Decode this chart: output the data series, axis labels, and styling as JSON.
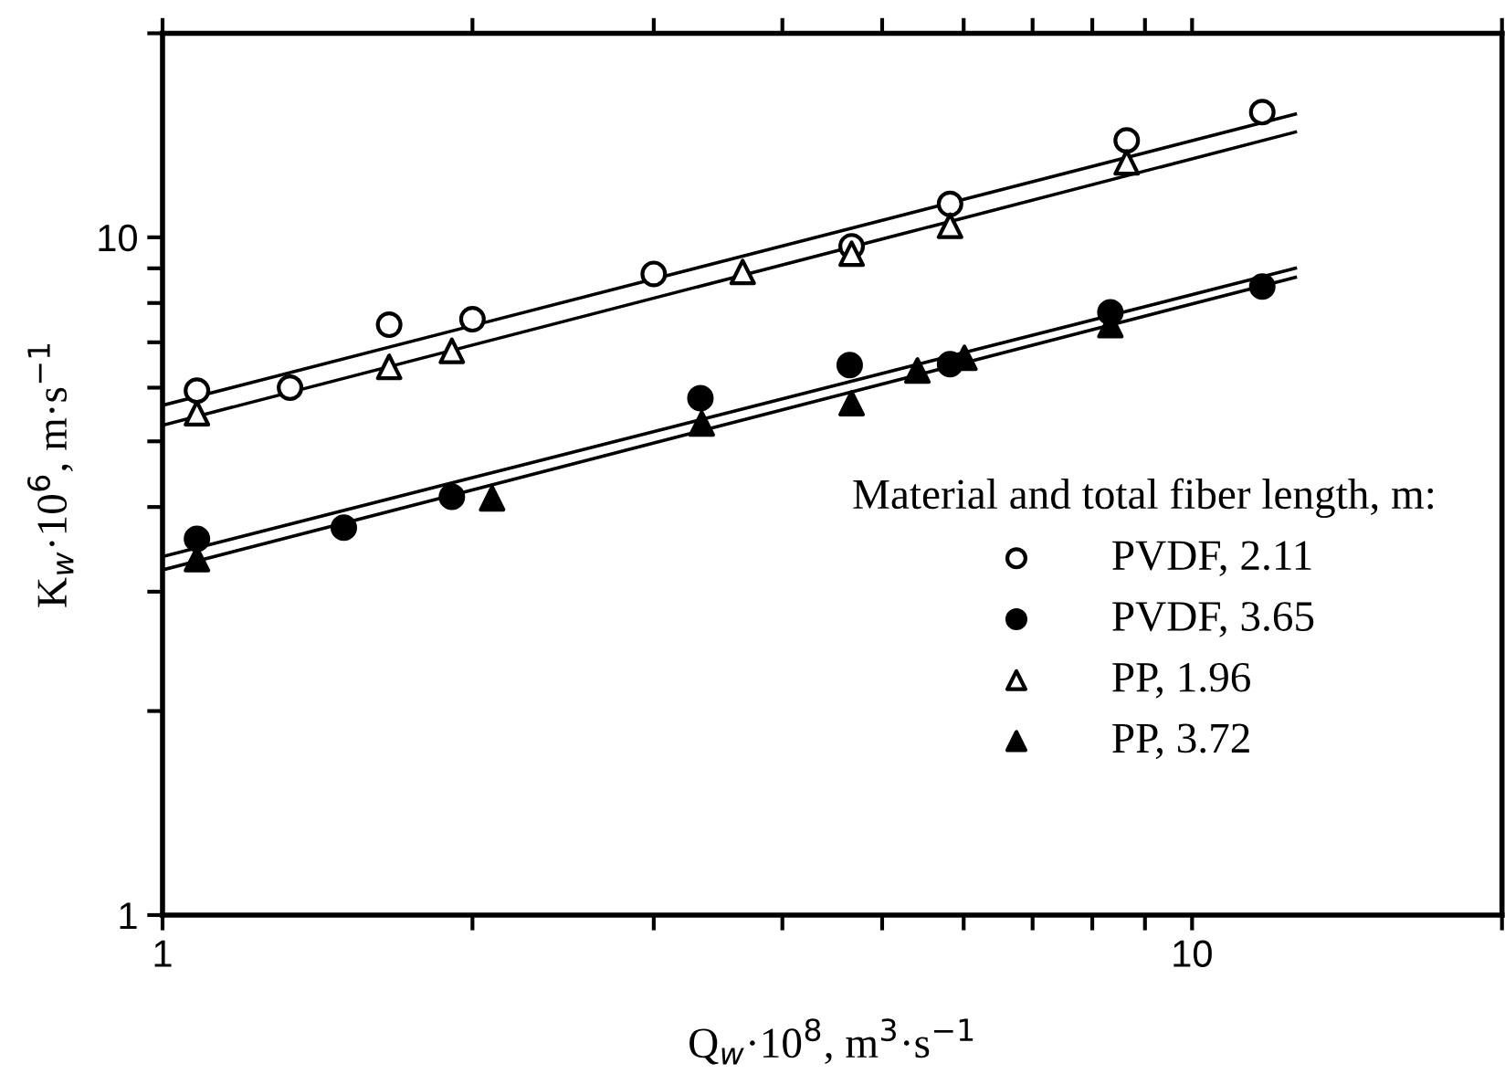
{
  "chart_data": {
    "type": "scatter",
    "xlabel": "Q$_{w}$·10$^{8}$, m$^{3}$·s$^{−1}$",
    "ylabel": "K$_{w}$·10$^{6}$, m·s$^{−1}$",
    "legend_title": "Material and total fiber length, m:",
    "log": "xy",
    "xlim": [
      1,
      20
    ],
    "ylim": [
      1,
      20
    ],
    "xticks": [
      1,
      {
        "value": 2,
        "label": null
      },
      {
        "value": 3,
        "label": null
      },
      {
        "value": 4,
        "label": null
      },
      {
        "value": 5,
        "label": null
      },
      {
        "value": 6,
        "label": null
      },
      {
        "value": 7,
        "label": null
      },
      {
        "value": 8,
        "label": null
      },
      {
        "value": 9,
        "label": null
      },
      10,
      {
        "value": 20,
        "label": null
      }
    ],
    "yticks": [
      1,
      {
        "value": 2,
        "label": null
      },
      {
        "value": 3,
        "label": null
      },
      {
        "value": 4,
        "label": null
      },
      {
        "value": 5,
        "label": null
      },
      {
        "value": 6,
        "label": null
      },
      {
        "value": 7,
        "label": null
      },
      {
        "value": 8,
        "label": null
      },
      {
        "value": 9,
        "label": null
      },
      10,
      {
        "value": 20,
        "label": null
      }
    ],
    "grid": false,
    "legend": "right",
    "series": [
      {
        "name": "PVDF, 2.11",
        "color": "#ffffff",
        "marker": "circle",
        "x": [
          1.08,
          1.33,
          1.66,
          2.0,
          3.0,
          4.67,
          5.82,
          8.64,
          11.7
        ],
        "values": [
          5.94,
          6.0,
          7.43,
          7.57,
          8.83,
          9.7,
          11.2,
          13.9,
          15.3
        ]
      },
      {
        "name": "PVDF, 3.65",
        "color": "#000000",
        "marker": "circle",
        "x": [
          1.08,
          1.5,
          1.91,
          3.33,
          4.65,
          5.82,
          8.33,
          11.7
        ],
        "values": [
          3.59,
          3.73,
          4.14,
          5.79,
          6.48,
          6.5,
          7.75,
          8.46
        ]
      },
      {
        "name": "PP, 1.96",
        "color": "#ffffff",
        "marker": "triangle",
        "x": [
          1.08,
          1.66,
          1.91,
          3.66,
          4.67,
          5.82,
          8.64
        ],
        "values": [
          5.5,
          6.44,
          6.8,
          8.89,
          9.46,
          10.4,
          12.9
        ]
      },
      {
        "name": "PP, 3.72",
        "color": "#000000",
        "marker": "triangle",
        "x": [
          1.08,
          2.09,
          3.34,
          4.67,
          5.41,
          6.01,
          8.33
        ],
        "values": [
          3.35,
          4.12,
          5.31,
          5.69,
          6.36,
          6.64,
          7.42
        ]
      },
      {
        "type": "line",
        "color": "#000000",
        "marker": "none",
        "line_style": "solid",
        "x": [
          1,
          12.6
        ],
        "values": [
          5.65,
          15.2
        ]
      },
      {
        "type": "line",
        "color": "#000000",
        "marker": "none",
        "line_style": "solid",
        "x": [
          1,
          12.6
        ],
        "values": [
          5.28,
          14.3
        ]
      },
      {
        "type": "line",
        "color": "#000000",
        "marker": "none",
        "line_style": "solid",
        "x": [
          1,
          12.6
        ],
        "values": [
          3.38,
          9.0
        ]
      },
      {
        "type": "line",
        "color": "#000000",
        "marker": "none",
        "line_style": "solid",
        "x": [
          1,
          12.6
        ],
        "values": [
          3.23,
          8.73
        ]
      }
    ]
  }
}
